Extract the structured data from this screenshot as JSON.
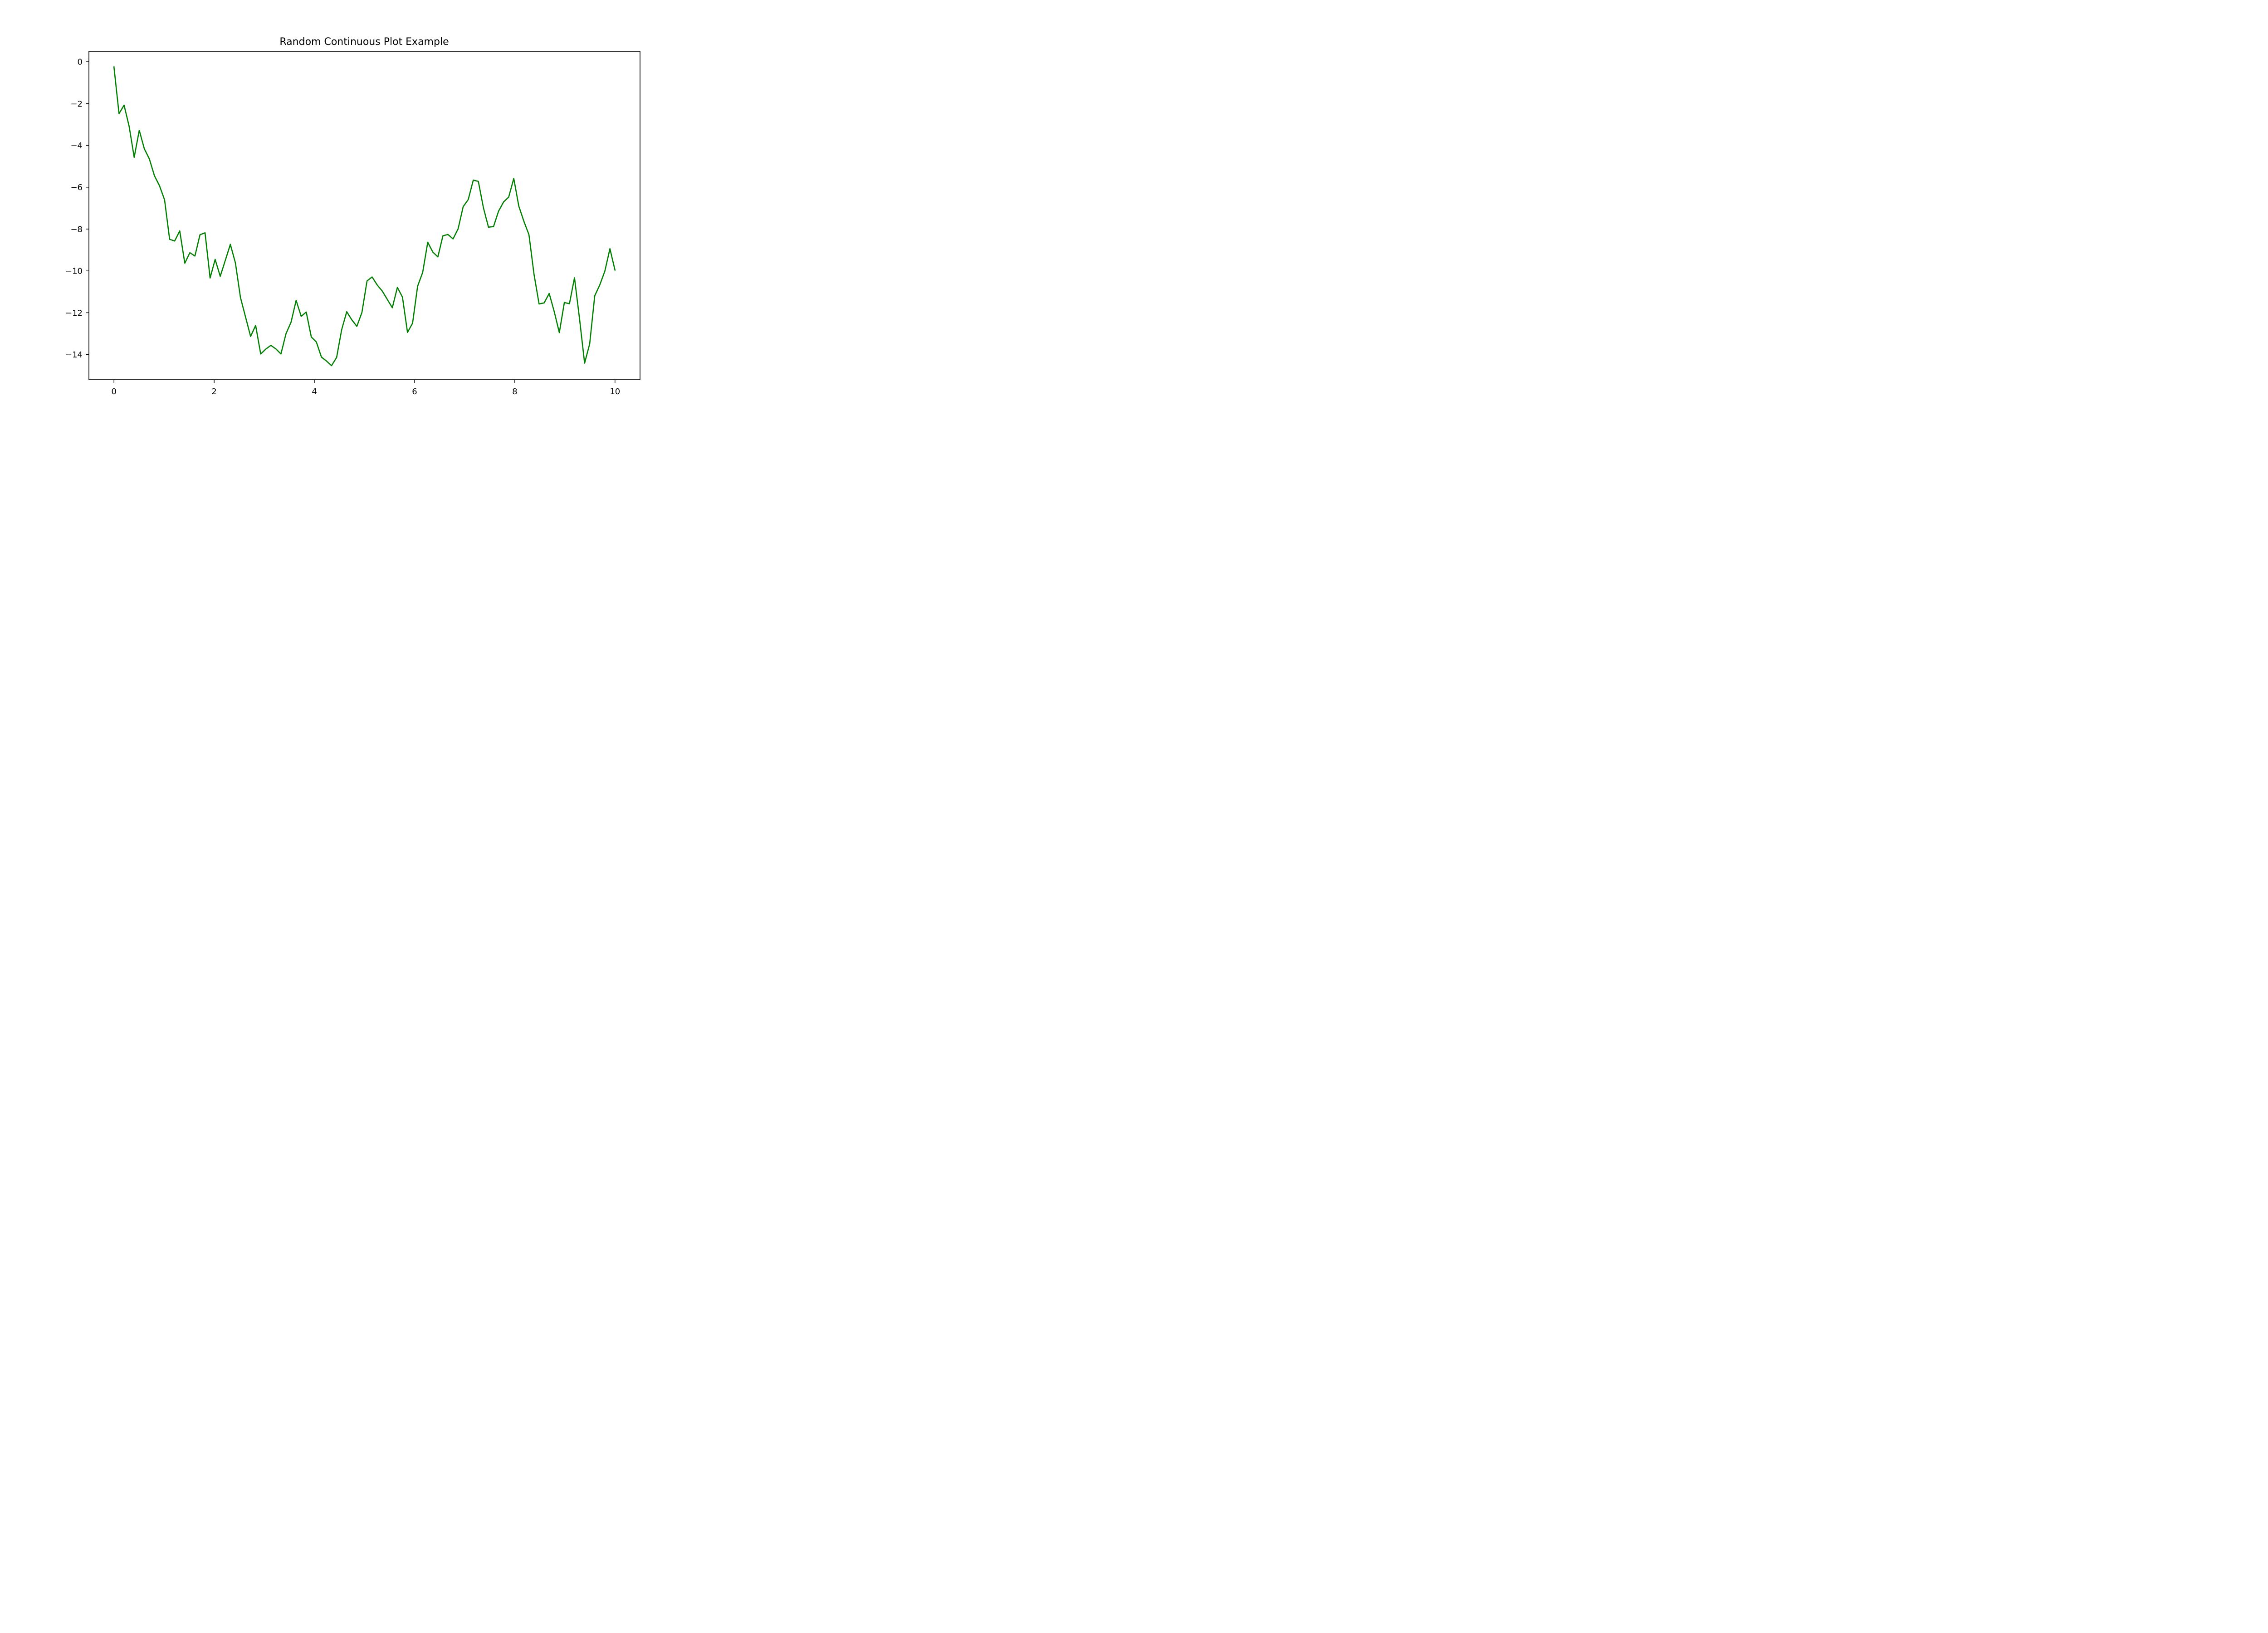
{
  "chart_data": {
    "type": "line",
    "title": "Random Continuous Plot Example",
    "xlabel": "",
    "ylabel": "",
    "xlim": [
      -0.5,
      10.5
    ],
    "ylim": [
      -15.2,
      0.5
    ],
    "x_ticks": [
      0,
      2,
      4,
      6,
      8,
      10
    ],
    "x_tick_labels": [
      "0",
      "2",
      "4",
      "6",
      "8",
      "10"
    ],
    "y_ticks": [
      0,
      -2,
      -4,
      -6,
      -8,
      -10,
      -12,
      -14
    ],
    "y_tick_labels": [
      "0",
      "−2",
      "−4",
      "−6",
      "−8",
      "−10",
      "−12",
      "−14"
    ],
    "grid": false,
    "legend": "none",
    "series": [
      {
        "color": "#008000",
        "x": [
          0.0,
          0.101,
          0.202,
          0.303,
          0.404,
          0.505,
          0.606,
          0.707,
          0.808,
          0.909,
          1.01,
          1.111,
          1.212,
          1.313,
          1.414,
          1.515,
          1.616,
          1.717,
          1.818,
          1.919,
          2.02,
          2.121,
          2.222,
          2.323,
          2.424,
          2.525,
          2.626,
          2.727,
          2.828,
          2.929,
          3.03,
          3.131,
          3.232,
          3.333,
          3.434,
          3.535,
          3.636,
          3.737,
          3.838,
          3.939,
          4.04,
          4.141,
          4.242,
          4.343,
          4.444,
          4.545,
          4.646,
          4.747,
          4.848,
          4.949,
          5.051,
          5.152,
          5.253,
          5.354,
          5.455,
          5.556,
          5.657,
          5.758,
          5.859,
          5.96,
          6.061,
          6.162,
          6.263,
          6.364,
          6.465,
          6.566,
          6.667,
          6.768,
          6.869,
          6.97,
          7.071,
          7.172,
          7.273,
          7.374,
          7.475,
          7.576,
          7.677,
          7.778,
          7.879,
          7.98,
          8.081,
          8.182,
          8.283,
          8.384,
          8.485,
          8.586,
          8.687,
          8.788,
          8.889,
          8.99,
          9.091,
          9.192,
          9.293,
          9.394,
          9.495,
          9.596,
          9.697,
          9.798,
          9.899,
          10.0
        ],
        "y": [
          -0.25,
          -2.48,
          -2.08,
          -3.09,
          -4.57,
          -3.28,
          -4.16,
          -4.65,
          -5.45,
          -5.93,
          -6.6,
          -8.49,
          -8.57,
          -8.09,
          -9.63,
          -9.13,
          -9.29,
          -8.27,
          -8.18,
          -10.34,
          -9.45,
          -10.26,
          -9.5,
          -8.73,
          -9.62,
          -11.27,
          -12.2,
          -13.13,
          -12.61,
          -13.97,
          -13.74,
          -13.56,
          -13.73,
          -13.97,
          -13.0,
          -12.45,
          -11.41,
          -12.17,
          -11.97,
          -13.16,
          -13.4,
          -14.12,
          -14.31,
          -14.53,
          -14.14,
          -12.81,
          -11.95,
          -12.34,
          -12.65,
          -11.99,
          -10.48,
          -10.29,
          -10.67,
          -10.96,
          -11.36,
          -11.76,
          -10.79,
          -11.25,
          -12.94,
          -12.5,
          -10.73,
          -10.07,
          -8.63,
          -9.1,
          -9.33,
          -8.32,
          -8.26,
          -8.47,
          -7.99,
          -6.93,
          -6.59,
          -5.66,
          -5.72,
          -6.98,
          -7.91,
          -7.88,
          -7.14,
          -6.7,
          -6.47,
          -5.58,
          -6.91,
          -7.63,
          -8.27,
          -10.16,
          -11.58,
          -11.53,
          -11.08,
          -11.95,
          -12.95,
          -11.51,
          -11.57,
          -10.33,
          -12.3,
          -14.41,
          -13.49,
          -11.19,
          -10.67,
          -10.01,
          -8.94,
          -9.96
        ]
      }
    ]
  }
}
